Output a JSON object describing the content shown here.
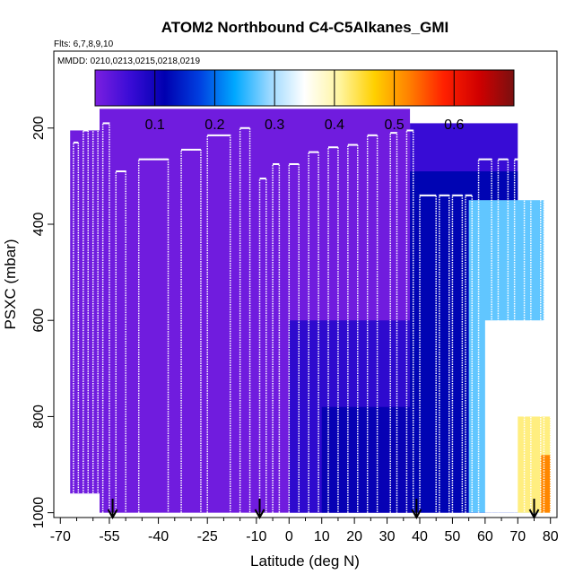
{
  "chart_data": {
    "type": "heatmap",
    "title": "ATOM2 Northbound C4-C5Alkanes_GMI",
    "flights_label": "Flts: 6,7,8,9,10",
    "dates_label": "MMDD: 0210,0213,0215,0218,0219",
    "xlabel": "Latitude (deg N)",
    "ylabel": "PSXC (mbar)",
    "xlim": [
      -72,
      82
    ],
    "ylim": [
      1010,
      40
    ],
    "x_ticks": [
      -70,
      -55,
      -40,
      -25,
      -10,
      0,
      10,
      20,
      30,
      40,
      50,
      60,
      70,
      80
    ],
    "x_tick_labels": [
      "-70",
      "-55",
      "-40",
      "-25",
      "-10",
      "0",
      "10",
      "20",
      "30",
      "40",
      "50",
      "60",
      "70",
      "80"
    ],
    "y_ticks": [
      200,
      400,
      600,
      800,
      1000
    ],
    "y_tick_labels": [
      "200",
      "400",
      "600",
      "800",
      "1000"
    ],
    "colorbar": {
      "range": [
        0,
        0.7
      ],
      "ticks": [
        0.1,
        0.2,
        0.3,
        0.4,
        0.5,
        0.6
      ],
      "tick_labels": [
        "0.1",
        "0.2",
        "0.3",
        "0.4",
        "0.5",
        "0.6"
      ],
      "stops": [
        "#7b1fe0",
        "#3a0cd6",
        "#0000b0",
        "#0040e0",
        "#00a8ff",
        "#9ad8ff",
        "#ffffff",
        "#fff5a0",
        "#ffd000",
        "#ff8000",
        "#ff2000",
        "#d00000",
        "#7a1010"
      ]
    },
    "data_regions": [
      {
        "lat_range": [
          -67,
          -58
        ],
        "p_range": [
          205,
          960
        ],
        "value": 0.01
      },
      {
        "lat_range": [
          -58,
          37
        ],
        "p_range": [
          160,
          1000
        ],
        "value": 0.01
      },
      {
        "lat_range": [
          0,
          37
        ],
        "p_range": [
          600,
          1000
        ],
        "value": 0.07
      },
      {
        "lat_range": [
          10,
          37
        ],
        "p_range": [
          780,
          1000
        ],
        "value": 0.11
      },
      {
        "lat_range": [
          37,
          70
        ],
        "p_range": [
          190,
          1000
        ],
        "value": 0.06
      },
      {
        "lat_range": [
          37,
          70
        ],
        "p_range": [
          290,
          1000
        ],
        "value": 0.12
      },
      {
        "lat_range": [
          55,
          78
        ],
        "p_range": [
          350,
          1000
        ],
        "value": 0.27
      },
      {
        "lat_range": [
          60,
          80
        ],
        "p_range": [
          600,
          1000
        ],
        "value": 0.35
      },
      {
        "lat_range": [
          70,
          80
        ],
        "p_range": [
          800,
          1000
        ],
        "value": 0.42
      },
      {
        "lat_range": [
          77,
          80
        ],
        "p_range": [
          880,
          1000
        ],
        "value": 0.52
      }
    ],
    "profiles": [
      {
        "lat_start": -68,
        "lat_end": -67.5,
        "p_top": 240
      },
      {
        "lat_start": -66,
        "lat_end": -64.5,
        "p_top": 230
      },
      {
        "lat_start": -63,
        "lat_end": -61.5,
        "p_top": 205
      },
      {
        "lat_start": -60,
        "lat_end": -58.5,
        "p_top": 195
      },
      {
        "lat_start": -57,
        "lat_end": -55,
        "p_top": 190
      },
      {
        "lat_start": -53,
        "lat_end": -50,
        "p_top": 290
      },
      {
        "lat_start": -46,
        "lat_end": -37,
        "p_top": 265
      },
      {
        "lat_start": -33,
        "lat_end": -27,
        "p_top": 245
      },
      {
        "lat_start": -25,
        "lat_end": -18,
        "p_top": 215
      },
      {
        "lat_start": -15,
        "lat_end": -12,
        "p_top": 200
      },
      {
        "lat_start": -9,
        "lat_end": -7,
        "p_top": 305
      },
      {
        "lat_start": -5,
        "lat_end": -3,
        "p_top": 275
      },
      {
        "lat_start": 0,
        "lat_end": 3,
        "p_top": 275
      },
      {
        "lat_start": 6,
        "lat_end": 9,
        "p_top": 250
      },
      {
        "lat_start": 12,
        "lat_end": 15,
        "p_top": 240
      },
      {
        "lat_start": 18,
        "lat_end": 21,
        "p_top": 235
      },
      {
        "lat_start": 24,
        "lat_end": 27,
        "p_top": 215
      },
      {
        "lat_start": 31,
        "lat_end": 33,
        "p_top": 210
      },
      {
        "lat_start": 36,
        "lat_end": 38,
        "p_top": 205
      },
      {
        "lat_start": 40,
        "lat_end": 45,
        "p_top": 340
      },
      {
        "lat_start": 46,
        "lat_end": 49,
        "p_top": 340
      },
      {
        "lat_start": 50,
        "lat_end": 53,
        "p_top": 340
      },
      {
        "lat_start": 54,
        "lat_end": 56,
        "p_top": 340
      },
      {
        "lat_start": 58,
        "lat_end": 62,
        "p_top": 265
      },
      {
        "lat_start": 64,
        "lat_end": 67,
        "p_top": 265
      },
      {
        "lat_start": 69,
        "lat_end": 72,
        "p_top": 265
      },
      {
        "lat_start": 74,
        "lat_end": 77,
        "p_top": 310
      },
      {
        "lat_start": 78,
        "lat_end": 80,
        "p_top": 290
      }
    ],
    "arrows_lat": [
      -54,
      -9,
      39,
      75
    ]
  }
}
